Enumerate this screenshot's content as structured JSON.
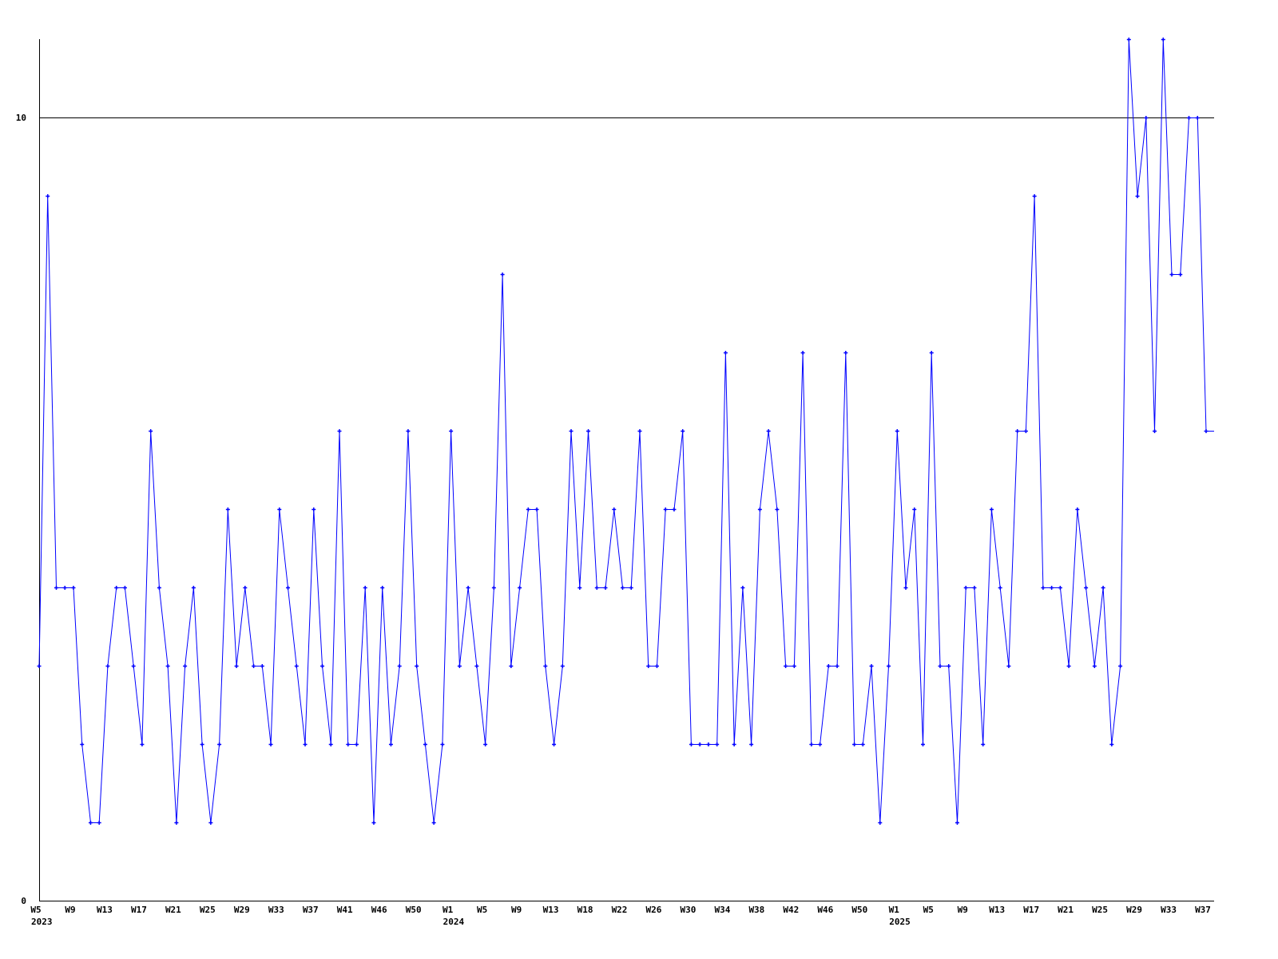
{
  "chart_data": {
    "type": "line",
    "title": "",
    "xlabel": "",
    "ylabel": "",
    "ylim": [
      0,
      11
    ],
    "y_ticks": [
      "0",
      "10"
    ],
    "grid": "horizontal line at 10 only",
    "line_color": "#0000ff",
    "axis_color": "#000000",
    "x_tick_labels": [
      "W5",
      "W9",
      "W13",
      "W17",
      "W21",
      "W25",
      "W29",
      "W33",
      "W37",
      "W41",
      "W46",
      "W50",
      "W1",
      "W5",
      "W9",
      "W13",
      "W18",
      "W22",
      "W26",
      "W30",
      "W34",
      "W38",
      "W42",
      "W46",
      "W50",
      "W1",
      "W5",
      "W9",
      "W13",
      "W17",
      "W21",
      "W25",
      "W29",
      "W33",
      "W37"
    ],
    "year_labels": [
      {
        "label": "2023",
        "tick_index": 0
      },
      {
        "label": "2024",
        "tick_index": 12
      },
      {
        "label": "2025",
        "tick_index": 25
      }
    ],
    "x_start": "2023 W5",
    "x_end": "2025 W37",
    "values": [
      3,
      9,
      4,
      4,
      4,
      2,
      1,
      1,
      3,
      4,
      4,
      3,
      2,
      6,
      4,
      3,
      1,
      3,
      4,
      2,
      1,
      2,
      5,
      3,
      4,
      3,
      3,
      2,
      5,
      4,
      3,
      2,
      5,
      3,
      2,
      6,
      2,
      2,
      4,
      1,
      4,
      2,
      3,
      6,
      3,
      2,
      1,
      2,
      6,
      3,
      4,
      3,
      2,
      4,
      8,
      3,
      4,
      5,
      5,
      3,
      2,
      3,
      6,
      4,
      6,
      4,
      4,
      5,
      4,
      4,
      6,
      3,
      3,
      5,
      5,
      6,
      2,
      2,
      2,
      2,
      7,
      2,
      4,
      2,
      5,
      6,
      5,
      3,
      3,
      7,
      2,
      2,
      3,
      3,
      7,
      2,
      2,
      3,
      1,
      3,
      6,
      4,
      5,
      2,
      7,
      3,
      3,
      1,
      4,
      4,
      2,
      5,
      4,
      3,
      6,
      6,
      9,
      4,
      4,
      4,
      3,
      5,
      4,
      3,
      4,
      2,
      3,
      11,
      9,
      10,
      6,
      11,
      8,
      8,
      10,
      10,
      6
    ]
  }
}
